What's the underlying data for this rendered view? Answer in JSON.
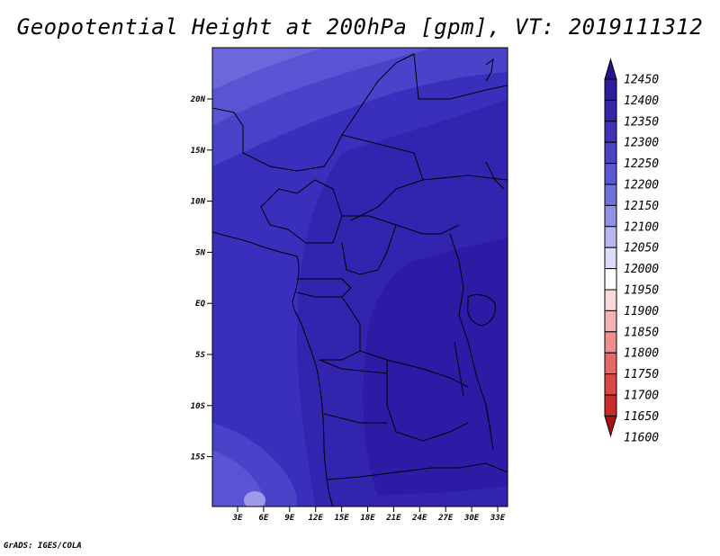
{
  "title": "Geopotential Height at 200hPa [gpm], VT: 2019111312",
  "credit": "GrADS: IGES/COLA",
  "map": {
    "lon_range": [
      0,
      34
    ],
    "lat_range": [
      -20,
      25
    ],
    "lat_ticks": [
      "20N",
      "15N",
      "10N",
      "5N",
      "EQ",
      "5S",
      "10S",
      "15S"
    ],
    "lon_ticks": [
      "3E",
      "6E",
      "9E",
      "12E",
      "15E",
      "18E",
      "21E",
      "24E",
      "27E",
      "30E",
      "33E"
    ]
  },
  "colorbar": {
    "levels": [
      "12450",
      "12400",
      "12350",
      "12300",
      "12250",
      "12200",
      "12150",
      "12100",
      "12050",
      "12000",
      "11950",
      "11900",
      "11850",
      "11800",
      "11750",
      "11700",
      "11650",
      "11600"
    ],
    "colors": [
      "#26148e",
      "#2d1d9c",
      "#3526a8",
      "#3f33b5",
      "#4c44c4",
      "#5a57d2",
      "#7270dc",
      "#9291e8",
      "#b7b6f2",
      "#dcdcfa",
      "#ffffff",
      "#fbd9d9",
      "#f5b4b4",
      "#ee8e8e",
      "#e66868",
      "#dc4646",
      "#c92a2a",
      "#a81212"
    ]
  }
}
